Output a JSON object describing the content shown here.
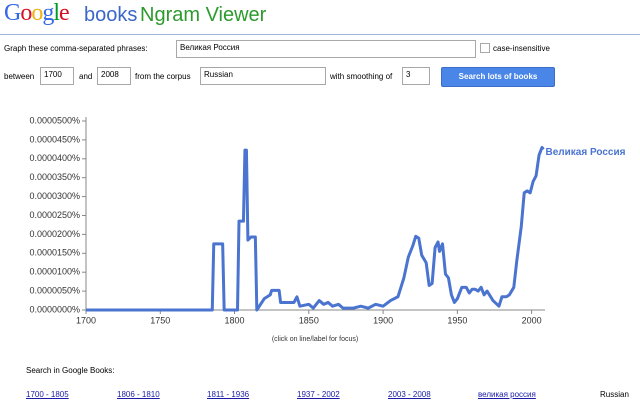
{
  "header": {
    "logo": "Google",
    "brand": "books",
    "product": "Ngram Viewer"
  },
  "form": {
    "phrases_label": "Graph these comma-separated phrases:",
    "phrases": "Великая Россия",
    "case_label": "case-insensitive",
    "between_label": "between",
    "start_year": "1700",
    "and_label": "and",
    "end_year": "2008",
    "corpus_label": "from the corpus",
    "corpus": "Russian",
    "smoothing_label": "with smoothing of",
    "smoothing": "3",
    "search_button": "Search lots of books"
  },
  "chart_data": {
    "type": "line",
    "x": [
      1700,
      1785,
      1786,
      1792,
      1793,
      1802,
      1803,
      1806,
      1807,
      1808,
      1809,
      1811,
      1814,
      1815,
      1820,
      1824,
      1825,
      1830,
      1831,
      1840,
      1842,
      1844,
      1850,
      1853,
      1857,
      1860,
      1863,
      1866,
      1870,
      1873,
      1880,
      1885,
      1890,
      1895,
      1900,
      1905,
      1910,
      1914,
      1917,
      1920,
      1922,
      1924,
      1926,
      1929,
      1931,
      1933,
      1935,
      1937,
      1938,
      1940,
      1942,
      1944,
      1946,
      1948,
      1950,
      1953,
      1956,
      1958,
      1960,
      1962,
      1964,
      1966,
      1968,
      1970,
      1974,
      1978,
      1980,
      1983,
      1985,
      1988,
      1990,
      1993,
      1995,
      1997,
      1999,
      2001,
      2003,
      2005,
      2007,
      2008
    ],
    "series": [
      {
        "name": "Великая Россия",
        "color": "#4a74cf",
        "values": [
          0,
          0,
          1.75e-05,
          1.75e-05,
          0,
          0,
          2.35e-05,
          2.35e-05,
          4.23e-05,
          4.23e-05,
          1.85e-05,
          1.93e-05,
          1.93e-05,
          0,
          3e-06,
          4e-06,
          5.2e-06,
          5.2e-06,
          2e-06,
          2e-06,
          3.5e-06,
          1e-06,
          1.5e-06,
          5e-07,
          2.5e-06,
          1.5e-06,
          2e-06,
          1e-06,
          1.5e-06,
          5e-07,
          5e-07,
          1e-06,
          5e-07,
          1.5e-06,
          1e-06,
          2.5e-06,
          3.5e-06,
          8.5e-06,
          1.4e-05,
          1.7e-05,
          1.95e-05,
          1.9e-05,
          1.45e-05,
          1.25e-05,
          6.5e-06,
          7e-06,
          1.65e-05,
          1.8e-05,
          1.55e-05,
          1.75e-05,
          9.5e-06,
          8.5e-06,
          4e-06,
          2e-06,
          3e-06,
          6e-06,
          6e-06,
          4.5e-06,
          5.5e-06,
          5.5e-06,
          5e-06,
          6e-06,
          4e-06,
          5e-06,
          2.5e-06,
          1e-06,
          3.5e-06,
          3.5e-06,
          4e-06,
          6e-06,
          1.3e-05,
          2.2e-05,
          3.1e-05,
          3.15e-05,
          3.1e-05,
          3.4e-05,
          3.55e-05,
          4.1e-05,
          4.3e-05,
          4.25e-05
        ]
      }
    ],
    "xlim": [
      1700,
      2009
    ],
    "xticks": [
      1700,
      1750,
      1800,
      1850,
      1900,
      1950,
      2000
    ],
    "ylim": [
      0,
      5e-05
    ],
    "yticks": [
      {
        "value": 0,
        "label": "0.0000000%"
      },
      {
        "value": 5e-06,
        "label": "0.0000050%"
      },
      {
        "value": 1e-05,
        "label": "0.0000100%"
      },
      {
        "value": 1.5e-05,
        "label": "0.0000150%"
      },
      {
        "value": 2e-05,
        "label": "0.0000200%"
      },
      {
        "value": 2.5e-05,
        "label": "0.0000250%"
      },
      {
        "value": 3e-05,
        "label": "0.0000300%"
      },
      {
        "value": 3.5e-05,
        "label": "0.0000350%"
      },
      {
        "value": 4e-05,
        "label": "0.0000400%"
      },
      {
        "value": 4.5e-05,
        "label": "0.0000450%"
      },
      {
        "value": 5e-05,
        "label": "0.0000500%"
      }
    ],
    "grid": false,
    "note": "(click on line/label for focus)"
  },
  "footer": {
    "search_label": "Search in Google Books:",
    "links": [
      "1700 - 1805",
      "1806 - 1810",
      "1811 - 1936",
      "1937 - 2002",
      "2003 - 2008",
      "великая россия"
    ],
    "corpus": "Russian"
  }
}
